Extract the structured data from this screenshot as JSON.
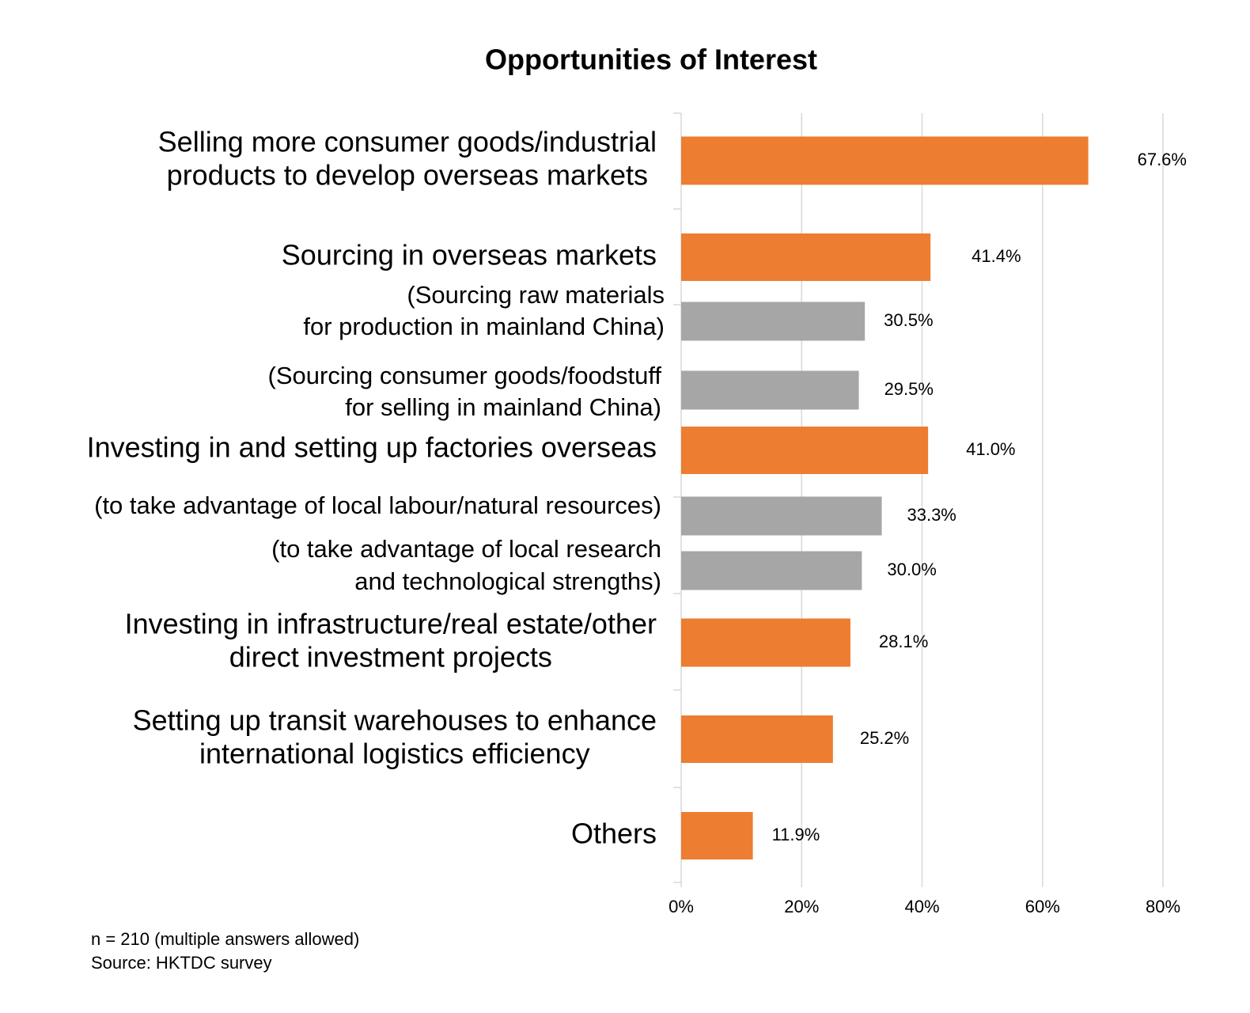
{
  "chart_data": {
    "type": "bar",
    "orientation": "horizontal",
    "title": "Opportunities of Interest",
    "categories": [
      [
        "Selling more consumer goods/industrial",
        "products to develop overseas markets"
      ],
      [
        "Sourcing in overseas markets"
      ],
      [
        "(Sourcing raw materials",
        "for production in mainland China)"
      ],
      [
        "(Sourcing consumer goods/foodstuff",
        "for selling in mainland China)"
      ],
      [
        "Investing in and setting up factories overseas"
      ],
      [
        "(to take advantage of local labour/natural resources)"
      ],
      [
        "(to take advantage of local research",
        "and technological strengths)"
      ],
      [
        "Investing in infrastructure/real estate/other",
        "direct investment projects"
      ],
      [
        "Setting up transit warehouses to enhance",
        "international logistics efficiency"
      ],
      [
        "Others"
      ]
    ],
    "values": [
      67.6,
      41.4,
      30.5,
      29.5,
      41.0,
      33.3,
      30.0,
      28.1,
      25.2,
      11.9
    ],
    "value_labels": [
      "67.6%",
      "41.4%",
      "30.5%",
      "29.5%",
      "41.0%",
      "33.3%",
      "30.0%",
      "28.1%",
      "25.2%",
      "11.9%"
    ],
    "colors": [
      "#ed7d31",
      "#ed7d31",
      "#a6a6a6",
      "#a6a6a6",
      "#ed7d31",
      "#a6a6a6",
      "#a6a6a6",
      "#ed7d31",
      "#ed7d31",
      "#ed7d31"
    ],
    "xlim": [
      0,
      80
    ],
    "xticks": [
      {
        "value": 0,
        "label": "0%"
      },
      {
        "value": 20,
        "label": "20%"
      },
      {
        "value": 40,
        "label": "40%"
      },
      {
        "value": 60,
        "label": "60%"
      },
      {
        "value": 80,
        "label": "80%"
      }
    ],
    "grid": true,
    "notes": [
      "n = 210 (multiple answers allowed)",
      "Source: HKTDC survey"
    ]
  }
}
